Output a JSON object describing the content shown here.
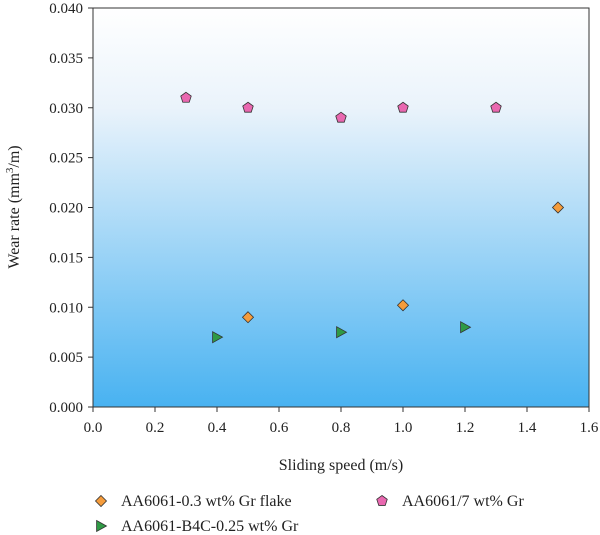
{
  "chart_data": {
    "type": "scatter",
    "xlabel": "Sliding speed (m/s)",
    "ylabel_parts": [
      "Wear rate (mm",
      "3",
      "/m)"
    ],
    "xlim": [
      0.0,
      1.6
    ],
    "ylim": [
      0.0,
      0.04
    ],
    "x_ticks": [
      "0.0",
      "0.2",
      "0.4",
      "0.6",
      "0.8",
      "1.0",
      "1.2",
      "1.4",
      "1.6"
    ],
    "y_ticks": [
      "0.000",
      "0.005",
      "0.010",
      "0.015",
      "0.020",
      "0.025",
      "0.030",
      "0.035",
      "0.040"
    ],
    "grid": false,
    "background": "vertical gradient white to light blue",
    "legend_position": "bottom",
    "series": [
      {
        "name": "AA6061-0.3 wt% Gr flake",
        "marker": "diamond",
        "color": "#f59c3c",
        "points": [
          [
            0.5,
            0.009
          ],
          [
            1.0,
            0.0102
          ],
          [
            1.5,
            0.02
          ]
        ]
      },
      {
        "name": "AA6061/7 wt% Gr",
        "marker": "pentagon",
        "color": "#e968b0",
        "points": [
          [
            0.3,
            0.031
          ],
          [
            0.5,
            0.03
          ],
          [
            0.8,
            0.029
          ],
          [
            1.0,
            0.03
          ],
          [
            1.3,
            0.03
          ]
        ]
      },
      {
        "name": "AA6061-B4C-0.25 wt% Gr",
        "marker": "triangle-right",
        "color": "#2f9a45",
        "points": [
          [
            0.4,
            0.007
          ],
          [
            0.8,
            0.0075
          ],
          [
            1.2,
            0.008
          ]
        ]
      }
    ]
  }
}
